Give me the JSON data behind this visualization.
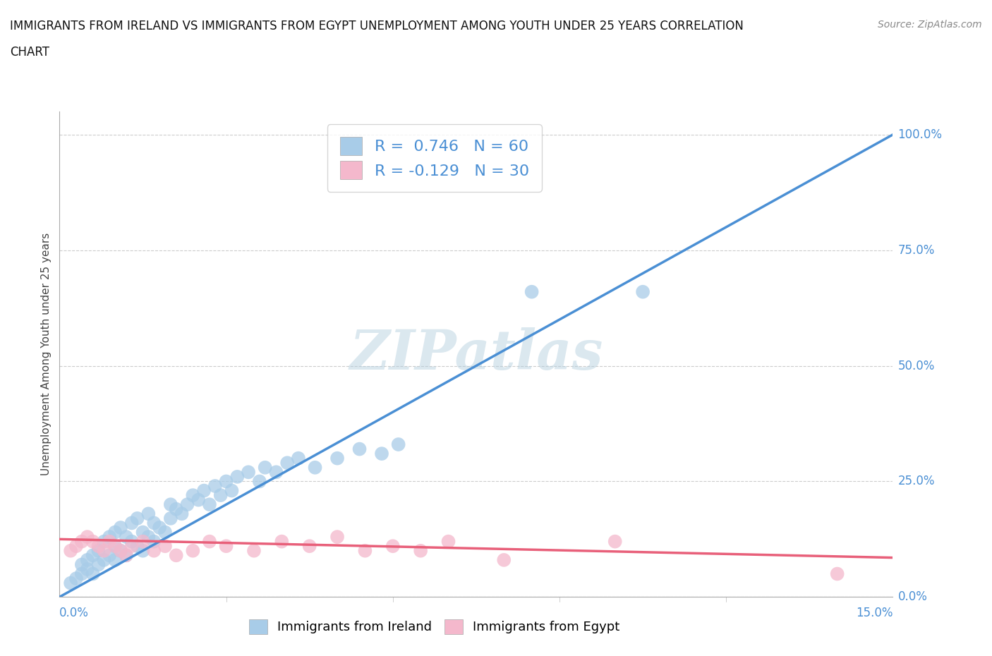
{
  "title_line1": "IMMIGRANTS FROM IRELAND VS IMMIGRANTS FROM EGYPT UNEMPLOYMENT AMONG YOUTH UNDER 25 YEARS CORRELATION",
  "title_line2": "CHART",
  "source": "Source: ZipAtlas.com",
  "ylabel": "Unemployment Among Youth under 25 years",
  "ytick_vals": [
    0,
    25,
    50,
    75,
    100
  ],
  "xlim": [
    0,
    15
  ],
  "ylim": [
    0,
    105
  ],
  "ireland_color": "#a8cce8",
  "egypt_color": "#f4b8cc",
  "ireland_line_color": "#4a8fd4",
  "egypt_line_color": "#e8607a",
  "legend_text_color": "#4a8fd4",
  "ireland_R": 0.746,
  "ireland_N": 60,
  "egypt_R": -0.129,
  "egypt_N": 30,
  "watermark": "ZIPatlas",
  "ireland_line_x0": 0,
  "ireland_line_y0": 0,
  "ireland_line_x1": 15,
  "ireland_line_y1": 100,
  "egypt_line_x0": 0,
  "egypt_line_y0": 12.5,
  "egypt_line_x1": 15,
  "egypt_line_y1": 8.5,
  "ireland_x": [
    0.2,
    0.3,
    0.4,
    0.4,
    0.5,
    0.5,
    0.6,
    0.6,
    0.7,
    0.7,
    0.8,
    0.8,
    0.9,
    0.9,
    1.0,
    1.0,
    1.0,
    1.1,
    1.1,
    1.2,
    1.2,
    1.3,
    1.3,
    1.4,
    1.4,
    1.5,
    1.5,
    1.6,
    1.6,
    1.7,
    1.7,
    1.8,
    1.9,
    2.0,
    2.0,
    2.1,
    2.2,
    2.3,
    2.4,
    2.5,
    2.6,
    2.7,
    2.8,
    2.9,
    3.0,
    3.1,
    3.2,
    3.4,
    3.6,
    3.7,
    3.9,
    4.1,
    4.3,
    4.6,
    5.0,
    5.4,
    5.8,
    6.1,
    8.5,
    10.5
  ],
  "ireland_y": [
    3,
    4,
    5,
    7,
    6,
    8,
    5,
    9,
    7,
    10,
    8,
    12,
    9,
    13,
    8,
    11,
    14,
    10,
    15,
    9,
    13,
    12,
    16,
    11,
    17,
    10,
    14,
    13,
    18,
    12,
    16,
    15,
    14,
    17,
    20,
    19,
    18,
    20,
    22,
    21,
    23,
    20,
    24,
    22,
    25,
    23,
    26,
    27,
    25,
    28,
    27,
    29,
    30,
    28,
    30,
    32,
    31,
    33,
    66,
    66
  ],
  "egypt_x": [
    0.2,
    0.3,
    0.4,
    0.5,
    0.6,
    0.7,
    0.8,
    0.9,
    1.0,
    1.1,
    1.2,
    1.3,
    1.5,
    1.7,
    1.9,
    2.1,
    2.4,
    2.7,
    3.0,
    3.5,
    4.0,
    4.5,
    5.0,
    5.5,
    6.0,
    6.5,
    7.0,
    8.0,
    10.0,
    14.0
  ],
  "egypt_y": [
    10,
    11,
    12,
    13,
    12,
    11,
    10,
    12,
    11,
    10,
    9,
    11,
    12,
    10,
    11,
    9,
    10,
    12,
    11,
    10,
    12,
    11,
    13,
    10,
    11,
    10,
    12,
    8,
    12,
    5
  ]
}
